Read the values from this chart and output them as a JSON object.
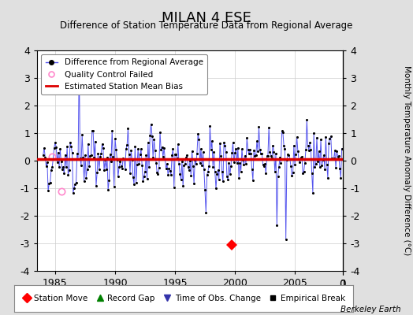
{
  "title": "MILAN 4 ESE",
  "subtitle": "Difference of Station Temperature Data from Regional Average",
  "ylabel": "Monthly Temperature Anomaly Difference (°C)",
  "credit": "Berkeley Earth",
  "xlim": [
    1983.5,
    2009.0
  ],
  "ylim": [
    -4,
    4
  ],
  "yticks": [
    -4,
    -3,
    -2,
    -1,
    0,
    1,
    2,
    3,
    4
  ],
  "xticks": [
    1985,
    1990,
    1995,
    2000,
    2005
  ],
  "bias_line_y": 0.05,
  "bias_break_x": 2000.5,
  "station_move_x": 1999.7,
  "station_move_y": -3.05,
  "qc_fail_points": [
    [
      1984.75,
      0.15
    ],
    [
      1985.5,
      -1.1
    ]
  ],
  "spike_x": 1987.0,
  "spike_y": 3.5,
  "drop1_x": 2003.5,
  "drop1_y": -2.5,
  "drop2_x": 2004.0,
  "drop2_y": -3.0,
  "bg_color": "#e0e0e0",
  "plot_bg_color": "#ffffff",
  "line_color": "#5555ee",
  "dot_color": "#000000",
  "bias_color": "#dd0000",
  "grid_color": "#cccccc",
  "seed": 42
}
